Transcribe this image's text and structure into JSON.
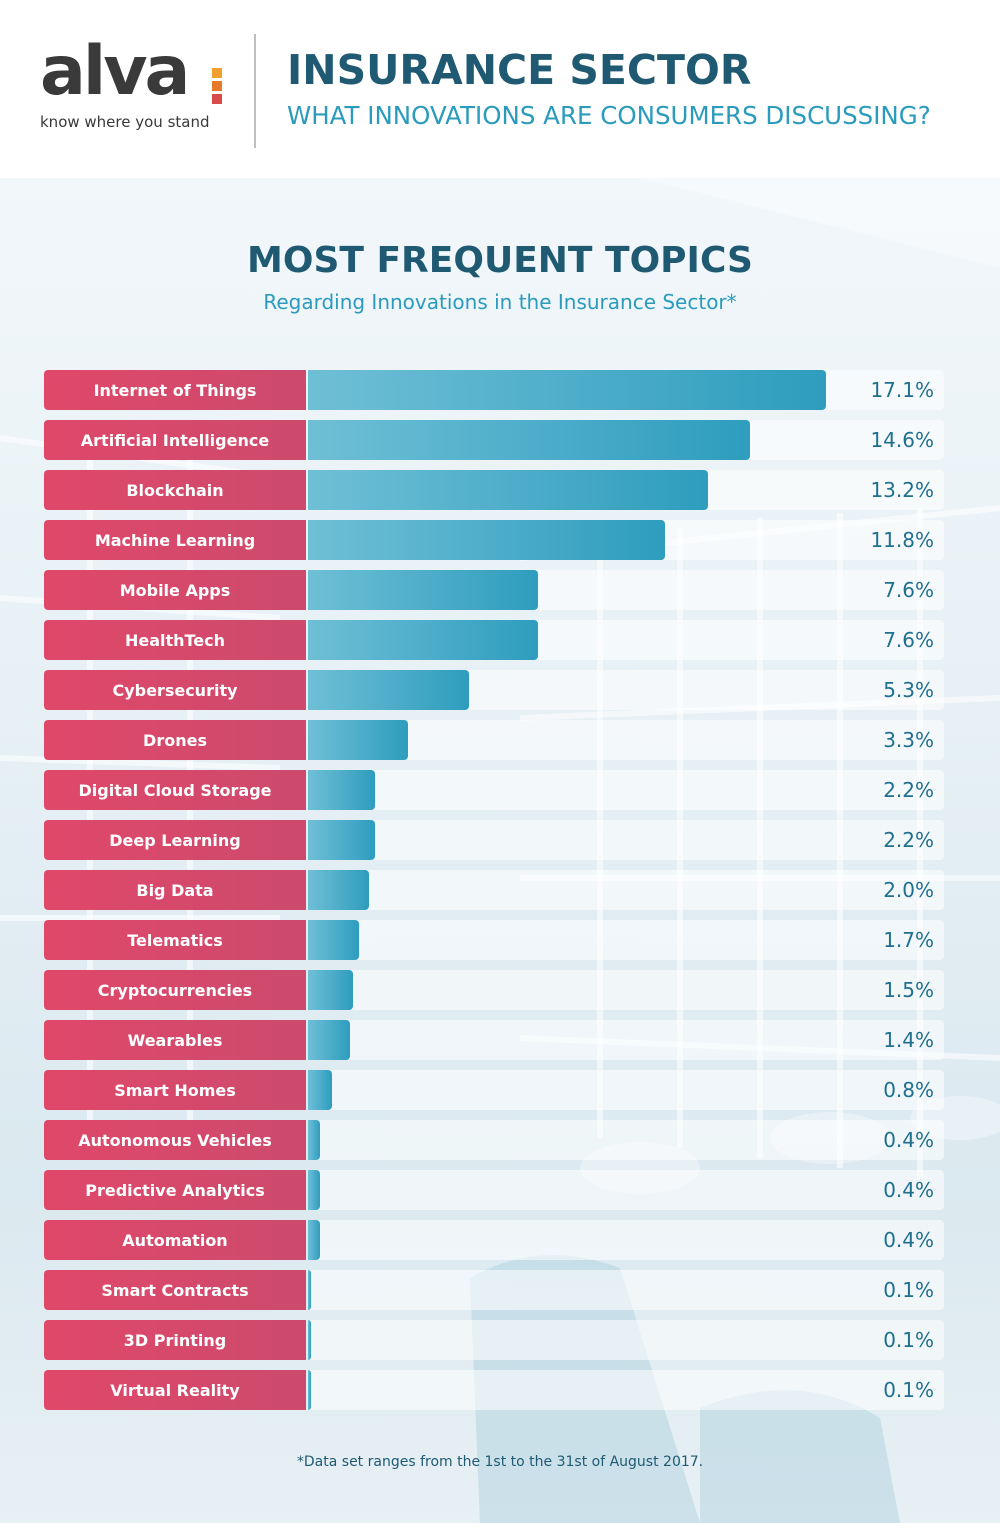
{
  "brand": {
    "name": "alva",
    "tagline": "know where you stand",
    "mark_colors": [
      "#f0a030",
      "#e67a2a",
      "#d94a4a"
    ]
  },
  "header": {
    "title": "INSURANCE SECTOR",
    "subtitle": "WHAT INNOVATIONS ARE CONSUMERS DISCUSSING?"
  },
  "chart_data": {
    "type": "bar",
    "orientation": "horizontal",
    "title": "MOST FREQUENT TOPICS",
    "subtitle": "Regarding Innovations in the Insurance Sector*",
    "categories": [
      "Internet of Things",
      "Artificial Intelligence",
      "Blockchain",
      "Machine Learning",
      "Mobile Apps",
      "HealthTech",
      "Cybersecurity",
      "Drones",
      "Digital Cloud Storage",
      "Deep Learning",
      "Big Data",
      "Telematics",
      "Cryptocurrencies",
      "Wearables",
      "Smart Homes",
      "Autonomous Vehicles",
      "Predictive Analytics",
      "Automation",
      "Smart Contracts",
      "3D Printing",
      "Virtual Reality"
    ],
    "values": [
      17.1,
      14.6,
      13.2,
      11.8,
      7.6,
      7.6,
      5.3,
      3.3,
      2.2,
      2.2,
      2.0,
      1.7,
      1.5,
      1.4,
      0.8,
      0.4,
      0.4,
      0.4,
      0.1,
      0.1,
      0.1
    ],
    "value_labels": [
      "17.1%",
      "14.6%",
      "13.2%",
      "11.8%",
      "7.6%",
      "7.6%",
      "5.3%",
      "3.3%",
      "2.2%",
      "2.2%",
      "2.0%",
      "1.7%",
      "1.5%",
      "1.4%",
      "0.8%",
      "0.4%",
      "0.4%",
      "0.4%",
      "0.1%",
      "0.1%",
      "0.1%"
    ],
    "unit": "%",
    "xlim": [
      0,
      21
    ],
    "colors": {
      "label_bg": "#e0486a",
      "bar": "#2e9dbe",
      "value_text": "#1f6f8f"
    }
  },
  "footnote": "*Data set ranges from the 1st to the 31st of August 2017."
}
